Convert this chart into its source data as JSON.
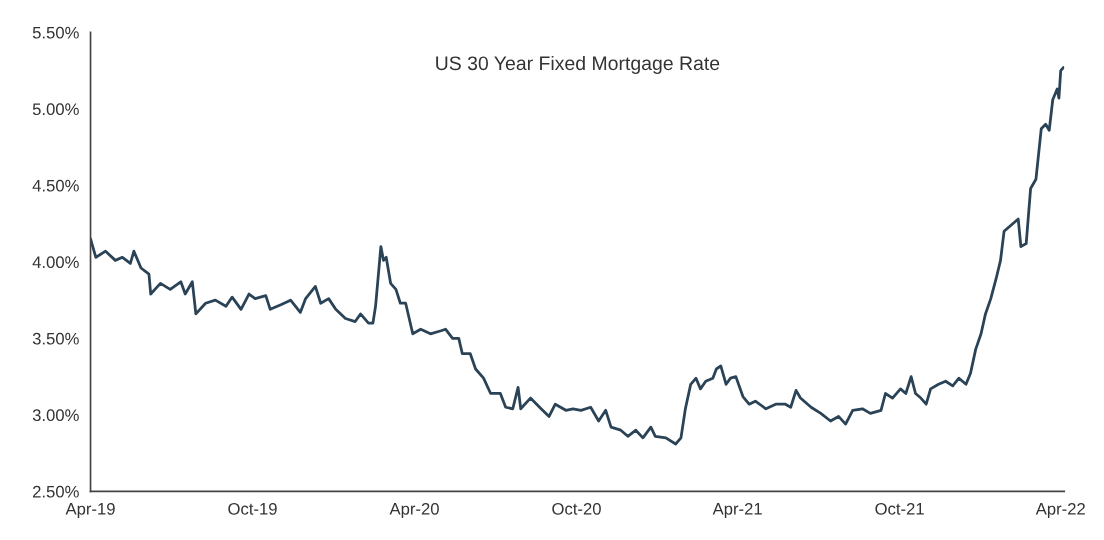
{
  "chart_data": {
    "type": "line",
    "title": "US 30 Year Fixed Mortgage Rate",
    "x": [
      "2019-04-01",
      "2019-04-07",
      "2019-04-18",
      "2019-04-29",
      "2019-05-07",
      "2019-05-16",
      "2019-05-20",
      "2019-05-28",
      "2019-06-06",
      "2019-06-08",
      "2019-06-19",
      "2019-06-30",
      "2019-07-12",
      "2019-07-17",
      "2019-07-25",
      "2019-07-29",
      "2019-08-09",
      "2019-08-20",
      "2019-09-01",
      "2019-09-08",
      "2019-09-18",
      "2019-09-27",
      "2019-10-04",
      "2019-10-16",
      "2019-10-21",
      "2019-11-02",
      "2019-11-13",
      "2019-11-24",
      "2019-11-30",
      "2019-12-11",
      "2019-12-17",
      "2019-12-26",
      "2020-01-03",
      "2020-01-14",
      "2020-01-25",
      "2020-01-31",
      "2020-02-09",
      "2020-02-14",
      "2020-02-17",
      "2020-02-23",
      "2020-02-26",
      "2020-02-29",
      "2020-03-05",
      "2020-03-11",
      "2020-03-16",
      "2020-03-22",
      "2020-03-30",
      "2020-04-08",
      "2020-04-19",
      "2020-05-01",
      "2020-05-06",
      "2020-05-14",
      "2020-05-21",
      "2020-05-25",
      "2020-06-03",
      "2020-06-09",
      "2020-06-18",
      "2020-06-26",
      "2020-07-07",
      "2020-07-13",
      "2020-07-21",
      "2020-07-27",
      "2020-07-30",
      "2020-08-10",
      "2020-08-22",
      "2020-08-31",
      "2020-09-07",
      "2020-09-19",
      "2020-09-27",
      "2020-10-06",
      "2020-10-17",
      "2020-10-26",
      "2020-11-03",
      "2020-11-09",
      "2020-11-20",
      "2020-11-28",
      "2020-12-07",
      "2020-12-15",
      "2020-12-24",
      "2020-12-29",
      "2021-01-10",
      "2021-01-21",
      "2021-01-27",
      "2021-02-01",
      "2021-02-07",
      "2021-02-13",
      "2021-02-18",
      "2021-02-24",
      "2021-03-04",
      "2021-03-08",
      "2021-03-13",
      "2021-03-19",
      "2021-03-24",
      "2021-03-30",
      "2021-04-07",
      "2021-04-14",
      "2021-04-21",
      "2021-05-03",
      "2021-05-14",
      "2021-05-25",
      "2021-05-31",
      "2021-06-06",
      "2021-06-11",
      "2021-06-23",
      "2021-07-04",
      "2021-07-15",
      "2021-07-24",
      "2021-08-01",
      "2021-08-09",
      "2021-08-20",
      "2021-08-29",
      "2021-09-10",
      "2021-09-15",
      "2021-09-23",
      "2021-10-02",
      "2021-10-08",
      "2021-10-14",
      "2021-10-19",
      "2021-10-25",
      "2021-10-31",
      "2021-11-05",
      "2021-11-14",
      "2021-11-22",
      "2021-11-30",
      "2021-12-07",
      "2021-12-15",
      "2021-12-20",
      "2021-12-26",
      "2022-01-01",
      "2022-01-06",
      "2022-01-12",
      "2022-01-18",
      "2022-01-23",
      "2022-01-27",
      "2022-02-12",
      "2022-02-15",
      "2022-02-21",
      "2022-02-26",
      "2022-03-04",
      "2022-03-10",
      "2022-03-15",
      "2022-03-19",
      "2022-03-23",
      "2022-03-28",
      "2022-03-30",
      "2022-04-01",
      "2022-04-04"
    ],
    "series": [
      {
        "color": "#2b4356",
        "values": [
          4.15,
          4.03,
          4.07,
          4.01,
          4.03,
          3.99,
          4.07,
          3.96,
          3.92,
          3.79,
          3.86,
          3.82,
          3.87,
          3.79,
          3.87,
          3.66,
          3.73,
          3.75,
          3.71,
          3.77,
          3.69,
          3.79,
          3.76,
          3.78,
          3.69,
          3.72,
          3.75,
          3.67,
          3.76,
          3.84,
          3.73,
          3.76,
          3.69,
          3.63,
          3.61,
          3.66,
          3.6,
          3.6,
          3.71,
          4.1,
          4.01,
          4.03,
          3.86,
          3.82,
          3.73,
          3.73,
          3.53,
          3.56,
          3.53,
          3.55,
          3.56,
          3.5,
          3.5,
          3.4,
          3.4,
          3.3,
          3.24,
          3.14,
          3.14,
          3.05,
          3.04,
          3.18,
          3.04,
          3.11,
          3.04,
          2.99,
          3.07,
          3.03,
          3.04,
          3.03,
          3.05,
          2.96,
          3.03,
          2.92,
          2.9,
          2.86,
          2.9,
          2.85,
          2.92,
          2.86,
          2.85,
          2.81,
          2.85,
          3.04,
          3.2,
          3.24,
          3.17,
          3.22,
          3.24,
          3.3,
          3.32,
          3.2,
          3.24,
          3.25,
          3.12,
          3.07,
          3.09,
          3.04,
          3.07,
          3.07,
          3.05,
          3.16,
          3.11,
          3.05,
          3.01,
          2.96,
          2.99,
          2.94,
          3.03,
          3.04,
          3.01,
          3.03,
          3.14,
          3.11,
          3.17,
          3.14,
          3.25,
          3.14,
          3.11,
          3.07,
          3.17,
          3.2,
          3.22,
          3.19,
          3.24,
          3.2,
          3.27,
          3.43,
          3.53,
          3.66,
          3.76,
          3.89,
          4.01,
          4.2,
          4.28,
          4.1,
          4.12,
          4.48,
          4.54,
          4.87,
          4.9,
          4.86,
          5.06,
          5.13,
          5.07,
          5.25,
          5.27
        ]
      }
    ],
    "xlim": [
      "2019-04-01",
      "2022-04-05"
    ],
    "xticks": [
      {
        "value": "2019-04-01",
        "label": "Apr-19"
      },
      {
        "value": "2019-10-01",
        "label": "Oct-19"
      },
      {
        "value": "2020-04-01",
        "label": "Apr-20"
      },
      {
        "value": "2020-10-01",
        "label": "Oct-20"
      },
      {
        "value": "2021-04-01",
        "label": "Apr-21"
      },
      {
        "value": "2021-10-01",
        "label": "Oct-21"
      },
      {
        "value": "2022-04-01",
        "label": "Apr-22"
      }
    ],
    "ylim": [
      2.5,
      5.5
    ],
    "yticks": [
      {
        "value": 2.5,
        "label": "2.50%"
      },
      {
        "value": 3.0,
        "label": "3.00%"
      },
      {
        "value": 3.5,
        "label": "3.50%"
      },
      {
        "value": 4.0,
        "label": "4.00%"
      },
      {
        "value": 4.5,
        "label": "4.50%"
      },
      {
        "value": 5.0,
        "label": "5.00%"
      },
      {
        "value": 5.5,
        "label": "5.50%"
      }
    ],
    "grid": false,
    "legend": false,
    "line_style": "solid",
    "marker": "none"
  }
}
